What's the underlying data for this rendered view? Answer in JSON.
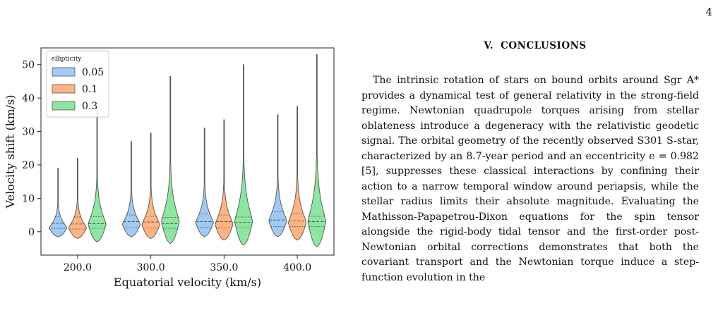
{
  "page_number": "4",
  "section": {
    "number": "V.",
    "title": "CONCLUSIONS"
  },
  "body": "The intrinsic rotation of stars on bound orbits around Sgr A* provides a dynamical test of general relativity in the strong-field regime. Newtonian quadrupole torques arising from stellar oblateness introduce a degeneracy with the relativistic geodetic signal. The orbital geometry of the recently observed S301 S-star, characterized by an 8.7-year period and an eccentricity e = 0.982 [5], suppresses these classical interactions by confining their action to a narrow temporal window around periapsis, while the stellar radius limits their absolute magnitude. Evaluating the Mathisson-Papapetrou-Dixon equations for the spin tensor alongside the rigid-body tidal tensor and the first-order post-Newtonian orbital corrections demonstrates that both the covariant transport and the Newtonian torque induce a step-function evolution in the",
  "chart_data": {
    "type": "violin",
    "xlabel": "Equatorial velocity (km/s)",
    "ylabel": "Velocity shift (km/s)",
    "ylim": [
      -7,
      55
    ],
    "yticks": [
      0,
      10,
      20,
      30,
      40,
      50
    ],
    "categories": [
      "200.0",
      "300.0",
      "350.0",
      "400.0"
    ],
    "legend": {
      "title": "ellipticity",
      "position": "top-left"
    },
    "series": [
      {
        "name": "0.05",
        "color": "#a1c9f4",
        "violins": [
          {
            "min": -1.5,
            "max": 19,
            "q1": 1.0,
            "median": 2.5,
            "q3": 4.5
          },
          {
            "min": -1.5,
            "max": 27,
            "q1": 1.2,
            "median": 3.0,
            "q3": 5.0
          },
          {
            "min": -1.5,
            "max": 31,
            "q1": 1.3,
            "median": 3.0,
            "q3": 5.3
          },
          {
            "min": -1.5,
            "max": 35,
            "q1": 1.5,
            "median": 3.5,
            "q3": 6.0
          }
        ]
      },
      {
        "name": "0.1",
        "color": "#ffb482",
        "violins": [
          {
            "min": -2.0,
            "max": 22,
            "q1": 0.8,
            "median": 2.3,
            "q3": 4.4
          },
          {
            "min": -2.0,
            "max": 29.5,
            "q1": 1.1,
            "median": 2.9,
            "q3": 4.6
          },
          {
            "min": -2.5,
            "max": 33.5,
            "q1": 1.2,
            "median": 3.0,
            "q3": 5.0
          },
          {
            "min": -2.5,
            "max": 37.5,
            "q1": 1.5,
            "median": 3.2,
            "q3": 5.4
          }
        ]
      },
      {
        "name": "0.3",
        "color": "#8de5a1",
        "violins": [
          {
            "min": -3.0,
            "max": 37,
            "q1": 1.0,
            "median": 2.4,
            "q3": 4.5
          },
          {
            "min": -3.5,
            "max": 46.5,
            "q1": 1.0,
            "median": 2.4,
            "q3": 4.3
          },
          {
            "min": -4.0,
            "max": 50,
            "q1": 1.2,
            "median": 2.8,
            "q3": 4.4
          },
          {
            "min": -4.5,
            "max": 53,
            "q1": 1.5,
            "median": 3.0,
            "q3": 4.6
          }
        ]
      }
    ]
  }
}
